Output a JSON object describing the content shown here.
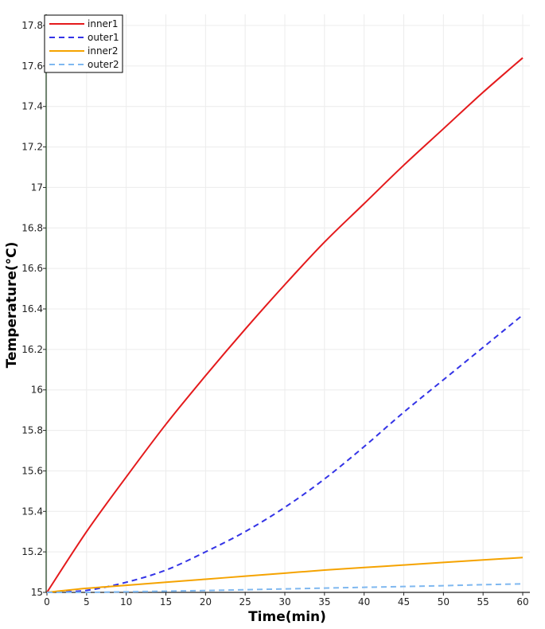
{
  "chart_data": {
    "type": "line",
    "title": "",
    "xlabel": "Time(min)",
    "ylabel": "Temperature(°C)",
    "xlim": [
      0,
      60
    ],
    "ylim": [
      15,
      17.8
    ],
    "xticks": [
      "0",
      "5",
      "10",
      "15",
      "20",
      "25",
      "30",
      "35",
      "40",
      "45",
      "50",
      "55",
      "60"
    ],
    "yticks": [
      "15",
      "15.2",
      "15.4",
      "15.6",
      "15.8",
      "16",
      "16.2",
      "16.4",
      "16.6",
      "16.8",
      "17",
      "17.2",
      "17.4",
      "17.6",
      "17.8"
    ],
    "grid": true,
    "legend_position": "top-left",
    "x": [
      0,
      5,
      10,
      15,
      20,
      25,
      30,
      35,
      40,
      45,
      50,
      55,
      60
    ],
    "series": [
      {
        "name": "inner1",
        "color": "#e41a1c",
        "dash": "solid",
        "values": [
          15.0,
          15.3,
          15.57,
          15.83,
          16.07,
          16.3,
          16.52,
          16.73,
          16.92,
          17.11,
          17.29,
          17.47,
          17.64
        ]
      },
      {
        "name": "outer1",
        "color": "#3333e6",
        "dash": "dashed",
        "values": [
          15.0,
          15.01,
          15.05,
          15.11,
          15.2,
          15.3,
          15.42,
          15.56,
          15.72,
          15.89,
          16.05,
          16.21,
          16.37
        ]
      },
      {
        "name": "inner2",
        "color": "#f5a300",
        "dash": "solid",
        "values": [
          15.0,
          15.02,
          15.035,
          15.05,
          15.065,
          15.08,
          15.095,
          15.11,
          15.123,
          15.135,
          15.148,
          15.16,
          15.172
        ]
      },
      {
        "name": "outer2",
        "color": "#7fb8f0",
        "dash": "dashed",
        "values": [
          15.0,
          15.0,
          15.003,
          15.006,
          15.009,
          15.013,
          15.017,
          15.021,
          15.025,
          15.029,
          15.033,
          15.038,
          15.042
        ]
      }
    ]
  }
}
